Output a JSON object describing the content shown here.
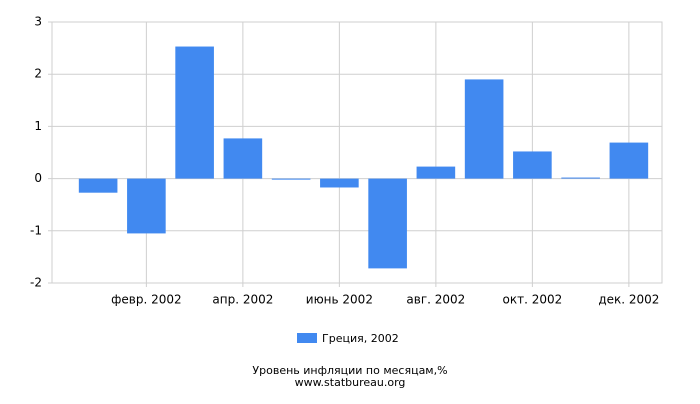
{
  "chart_data": {
    "type": "bar",
    "title": "Уровень инфляции по месяцам,%",
    "subtitle": "www.statbureau.org",
    "categories": [
      null,
      "февр. 2002",
      null,
      "апр. 2002",
      null,
      "июнь 2002",
      null,
      "авг. 2002",
      null,
      "окт. 2002",
      null,
      "дек. 2002"
    ],
    "series": [
      {
        "name": "Греция, 2002",
        "color": "#4189f0",
        "values": [
          -0.27,
          -1.05,
          2.53,
          0.77,
          -0.02,
          -0.17,
          -1.72,
          0.23,
          1.9,
          0.52,
          0.02,
          0.69
        ]
      }
    ],
    "ylim": [
      -2,
      3
    ],
    "yticks": [
      -2,
      -1,
      0,
      1,
      2,
      3
    ],
    "grid": true
  }
}
